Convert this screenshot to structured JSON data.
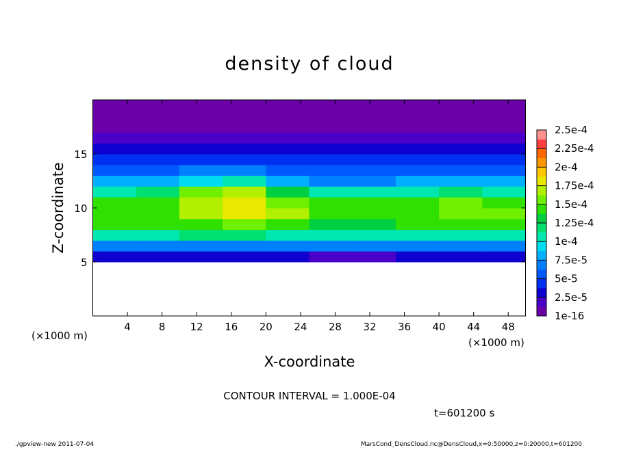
{
  "chart_data": {
    "type": "heatmap",
    "title": "density of cloud",
    "xlabel": "X-coordinate",
    "ylabel": "Z-coordinate",
    "xunit": "(×1000 m)",
    "yunit": "(×1000 m)",
    "xlim": [
      0,
      50
    ],
    "ylim": [
      0,
      20
    ],
    "xticks": [
      4,
      8,
      12,
      16,
      20,
      24,
      28,
      32,
      36,
      40,
      44,
      48
    ],
    "yticks": [
      5,
      10,
      15
    ],
    "x_edges": [
      0,
      5,
      10,
      15,
      20,
      25,
      30,
      35,
      40,
      45,
      50
    ],
    "z_edges": [
      5,
      6,
      7,
      8,
      9,
      10,
      11,
      12,
      13,
      14,
      15,
      16,
      17,
      18,
      19,
      20
    ],
    "values": [
      [
        3e-05,
        3e-05,
        3e-05,
        3e-05,
        3e-05,
        2.5e-05,
        2.5e-05,
        3e-05,
        3e-05,
        3e-05
      ],
      [
        7e-05,
        7e-05,
        7e-05,
        7e-05,
        6.5e-05,
        6.5e-05,
        7e-05,
        7e-05,
        7e-05,
        7e-05
      ],
      [
        0.00011,
        0.00011,
        0.000115,
        0.000115,
        0.00011,
        0.000105,
        0.000105,
        0.00011,
        0.00011,
        0.00011
      ],
      [
        0.00014,
        0.00014,
        0.00015,
        0.000155,
        0.000145,
        0.000135,
        0.000135,
        0.00014,
        0.000145,
        0.00014
      ],
      [
        0.00015,
        0.00015,
        0.00017,
        0.00018,
        0.000165,
        0.000145,
        0.000145,
        0.00015,
        0.00016,
        0.000155
      ],
      [
        0.00014,
        0.000145,
        0.000175,
        0.000185,
        0.00016,
        0.00014,
        0.00014,
        0.000145,
        0.000155,
        0.00015
      ],
      [
        0.00011,
        0.000115,
        0.00016,
        0.00017,
        0.00013,
        0.000105,
        0.000105,
        0.00011,
        0.000115,
        0.00011
      ],
      [
        8e-05,
        8e-05,
        0.0001,
        0.000105,
        8e-05,
        7.5e-05,
        7.5e-05,
        8e-05,
        8e-05,
        8e-05
      ],
      [
        6e-05,
        6e-05,
        6.5e-05,
        6.5e-05,
        6e-05,
        5.5e-05,
        5.5e-05,
        6e-05,
        6e-05,
        6e-05
      ],
      [
        4.5e-05,
        4.5e-05,
        4.5e-05,
        4e-05,
        4e-05,
        4e-05,
        4.5e-05,
        4.5e-05,
        4.5e-05,
        4.5e-05
      ],
      [
        3.5e-05,
        3.5e-05,
        3e-05,
        3e-05,
        3e-05,
        3e-05,
        3e-05,
        3.5e-05,
        3.5e-05,
        3.5e-05
      ],
      [
        2e-05,
        2e-05,
        2e-05,
        2e-05,
        2e-05,
        2e-05,
        2e-05,
        2e-05,
        2e-05,
        2e-05
      ],
      [
        1.2e-05,
        1.2e-05,
        1e-05,
        1e-05,
        1e-05,
        1e-05,
        1e-05,
        1.2e-05,
        1.2e-05,
        1.2e-05
      ],
      [
        5e-06,
        5e-06,
        5e-06,
        5e-06,
        5e-06,
        5e-06,
        5e-06,
        5e-06,
        5e-06,
        5e-06
      ],
      [
        2e-06,
        2e-06,
        2e-06,
        2e-06,
        2e-06,
        2e-06,
        2e-06,
        2e-06,
        2e-06,
        2e-06
      ]
    ],
    "colorbar_ticks": [
      {
        "value": 1e-16,
        "label": "1e-16"
      },
      {
        "value": 2.5e-05,
        "label": "2.5e-5"
      },
      {
        "value": 5e-05,
        "label": "5e-5"
      },
      {
        "value": 7.5e-05,
        "label": "7.5e-5"
      },
      {
        "value": 0.0001,
        "label": "1e-4"
      },
      {
        "value": 0.000125,
        "label": "1.25e-4"
      },
      {
        "value": 0.00015,
        "label": "1.5e-4"
      },
      {
        "value": 0.000175,
        "label": "1.75e-4"
      },
      {
        "value": 0.0002,
        "label": "2e-4"
      },
      {
        "value": 0.000225,
        "label": "2.25e-4"
      },
      {
        "value": 0.00025,
        "label": "2.5e-4"
      }
    ],
    "colors": [
      "#6a00a8",
      "#4a00c8",
      "#1000d0",
      "#0030f0",
      "#0058ff",
      "#0080ff",
      "#00b0ff",
      "#00dcf0",
      "#00e8b0",
      "#00e070",
      "#00d040",
      "#30e000",
      "#70f000",
      "#b0f000",
      "#e8e800",
      "#ffc800",
      "#ff9800",
      "#ff6800",
      "#ff4040",
      "#ff9090"
    ],
    "contour_note": "CONTOUR INTERVAL = 1.000E-04",
    "time_label": "t=601200 s",
    "footer_left": "./gpview-new  2011-07-04",
    "footer_right": "MarsCond_DensCloud.nc@DensCloud,x=0:50000,z=0:20000,t=601200"
  }
}
